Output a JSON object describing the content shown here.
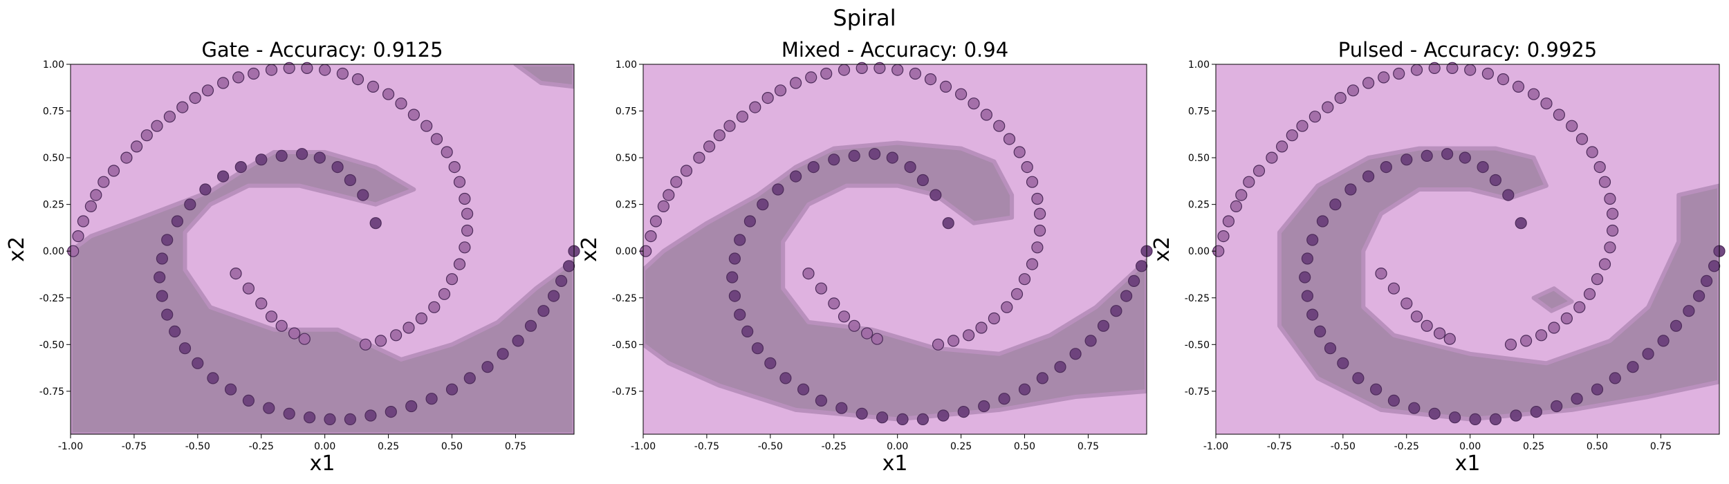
{
  "figure": {
    "title": "Spiral"
  },
  "chart_data": [
    {
      "type": "scatter",
      "title": "Gate - Accuracy: 0.9125",
      "xlabel": "x1",
      "ylabel": "x2",
      "xlim": [
        -1.0,
        0.98
      ],
      "ylim": [
        -0.98,
        1.0
      ],
      "xticks": [
        "-1.00",
        "-0.75",
        "-0.50",
        "-0.25",
        "0.00",
        "0.25",
        "0.50",
        "0.75"
      ],
      "yticks": [
        "1.00",
        "0.75",
        "0.50",
        "0.25",
        "0.00",
        "-0.25",
        "-0.50",
        "-0.75"
      ],
      "decision_region_class0": [
        [
          -1.0,
          0.0
        ],
        [
          -0.92,
          0.08
        ],
        [
          -0.72,
          0.18
        ],
        [
          -0.45,
          0.32
        ],
        [
          -0.3,
          0.45
        ],
        [
          -0.2,
          0.53
        ],
        [
          0.0,
          0.53
        ],
        [
          0.2,
          0.45
        ],
        [
          0.35,
          0.33
        ],
        [
          0.2,
          0.25
        ],
        [
          0.05,
          0.3
        ],
        [
          -0.1,
          0.35
        ],
        [
          -0.3,
          0.35
        ],
        [
          -0.45,
          0.25
        ],
        [
          -0.55,
          0.1
        ],
        [
          -0.55,
          -0.1
        ],
        [
          -0.45,
          -0.3
        ],
        [
          -0.2,
          -0.42
        ],
        [
          0.05,
          -0.42
        ],
        [
          0.3,
          -0.58
        ],
        [
          0.5,
          -0.5
        ],
        [
          0.68,
          -0.38
        ],
        [
          0.83,
          -0.2
        ],
        [
          0.98,
          -0.05
        ],
        [
          0.98,
          -0.98
        ],
        [
          -1.0,
          -0.98
        ]
      ],
      "decision_region_top_right": [
        [
          0.75,
          1.0
        ],
        [
          0.98,
          1.0
        ],
        [
          0.98,
          0.88
        ],
        [
          0.85,
          0.9
        ]
      ],
      "series": [
        {
          "name": "",
          "color": "#a06ca5",
          "x": [
            -0.99,
            -0.97,
            -0.95,
            -0.92,
            -0.9,
            -0.87,
            -0.83,
            -0.78,
            -0.74,
            -0.7,
            -0.66,
            -0.61,
            -0.56,
            -0.51,
            -0.46,
            -0.4,
            -0.34,
            -0.28,
            -0.21,
            -0.14,
            -0.07,
            0.0,
            0.07,
            0.13,
            0.19,
            0.25,
            0.3,
            0.35,
            0.4,
            0.44,
            0.48,
            0.51,
            0.53,
            0.55,
            0.56,
            0.56,
            0.55,
            0.53,
            0.5,
            0.47,
            0.43,
            0.38,
            0.33,
            0.28,
            0.22,
            0.16,
            -0.35,
            -0.3,
            -0.25,
            -0.21,
            -0.17,
            -0.12,
            -0.08
          ],
          "y": [
            0.0,
            0.08,
            0.16,
            0.24,
            0.3,
            0.37,
            0.43,
            0.5,
            0.56,
            0.62,
            0.67,
            0.72,
            0.77,
            0.82,
            0.86,
            0.9,
            0.93,
            0.95,
            0.97,
            0.98,
            0.98,
            0.97,
            0.95,
            0.92,
            0.88,
            0.84,
            0.79,
            0.73,
            0.67,
            0.6,
            0.53,
            0.45,
            0.37,
            0.28,
            0.2,
            0.11,
            0.02,
            -0.07,
            -0.15,
            -0.23,
            -0.3,
            -0.36,
            -0.41,
            -0.45,
            -0.48,
            -0.5,
            -0.12,
            -0.2,
            -0.28,
            -0.35,
            -0.4,
            -0.44,
            -0.47
          ]
        },
        {
          "name": "",
          "color": "#6a3f7a",
          "x": [
            0.98,
            0.96,
            0.93,
            0.9,
            0.86,
            0.81,
            0.76,
            0.7,
            0.64,
            0.57,
            0.5,
            0.42,
            0.34,
            0.26,
            0.18,
            0.1,
            0.02,
            -0.06,
            -0.14,
            -0.22,
            -0.3,
            -0.37,
            -0.44,
            -0.5,
            -0.55,
            -0.59,
            -0.62,
            -0.64,
            -0.65,
            -0.64,
            -0.62,
            -0.58,
            -0.53,
            -0.47,
            -0.4,
            -0.33,
            -0.25,
            -0.17,
            -0.09,
            -0.02,
            0.05,
            0.1,
            0.15,
            0.2
          ],
          "y": [
            0.0,
            -0.08,
            -0.16,
            -0.24,
            -0.32,
            -0.4,
            -0.48,
            -0.55,
            -0.62,
            -0.68,
            -0.74,
            -0.79,
            -0.83,
            -0.86,
            -0.88,
            -0.9,
            -0.9,
            -0.89,
            -0.87,
            -0.84,
            -0.8,
            -0.74,
            -0.68,
            -0.6,
            -0.52,
            -0.43,
            -0.34,
            -0.24,
            -0.14,
            -0.04,
            0.06,
            0.16,
            0.25,
            0.33,
            0.4,
            0.45,
            0.49,
            0.51,
            0.52,
            0.5,
            0.45,
            0.38,
            0.3,
            0.15
          ]
        }
      ]
    },
    {
      "type": "scatter",
      "title": "Mixed - Accuracy: 0.94",
      "xlabel": "x1",
      "ylabel": "x2",
      "xlim": [
        -1.0,
        0.98
      ],
      "ylim": [
        -0.98,
        1.0
      ],
      "xticks": [
        "-1.00",
        "-0.75",
        "-0.50",
        "-0.25",
        "0.00",
        "0.25",
        "0.50",
        "0.75"
      ],
      "yticks": [
        "1.00",
        "0.75",
        "0.50",
        "0.25",
        "0.00",
        "-0.25",
        "-0.50",
        "-0.75"
      ],
      "decision_region_class0": [
        [
          -1.0,
          -0.1
        ],
        [
          -0.92,
          0.0
        ],
        [
          -0.75,
          0.15
        ],
        [
          -0.55,
          0.3
        ],
        [
          -0.4,
          0.45
        ],
        [
          -0.25,
          0.55
        ],
        [
          0.0,
          0.58
        ],
        [
          0.25,
          0.55
        ],
        [
          0.38,
          0.48
        ],
        [
          0.45,
          0.3
        ],
        [
          0.45,
          0.18
        ],
        [
          0.3,
          0.15
        ],
        [
          0.15,
          0.3
        ],
        [
          0.0,
          0.35
        ],
        [
          -0.2,
          0.35
        ],
        [
          -0.35,
          0.25
        ],
        [
          -0.45,
          0.05
        ],
        [
          -0.45,
          -0.2
        ],
        [
          -0.35,
          -0.38
        ],
        [
          -0.1,
          -0.42
        ],
        [
          0.15,
          -0.52
        ],
        [
          0.4,
          -0.55
        ],
        [
          0.6,
          -0.45
        ],
        [
          0.78,
          -0.3
        ],
        [
          0.98,
          -0.05
        ],
        [
          0.98,
          -0.75
        ],
        [
          0.7,
          -0.78
        ],
        [
          0.4,
          -0.85
        ],
        [
          0.0,
          -0.9
        ],
        [
          -0.4,
          -0.85
        ],
        [
          -0.7,
          -0.72
        ],
        [
          -0.9,
          -0.6
        ],
        [
          -1.0,
          -0.5
        ]
      ],
      "series": [
        {
          "name": "",
          "color": "#a06ca5",
          "x": [
            -0.99,
            -0.97,
            -0.95,
            -0.92,
            -0.9,
            -0.87,
            -0.83,
            -0.78,
            -0.74,
            -0.7,
            -0.66,
            -0.61,
            -0.56,
            -0.51,
            -0.46,
            -0.4,
            -0.34,
            -0.28,
            -0.21,
            -0.14,
            -0.07,
            0.0,
            0.07,
            0.13,
            0.19,
            0.25,
            0.3,
            0.35,
            0.4,
            0.44,
            0.48,
            0.51,
            0.53,
            0.55,
            0.56,
            0.56,
            0.55,
            0.53,
            0.5,
            0.47,
            0.43,
            0.38,
            0.33,
            0.28,
            0.22,
            0.16,
            -0.35,
            -0.3,
            -0.25,
            -0.21,
            -0.17,
            -0.12,
            -0.08
          ],
          "y": [
            0.0,
            0.08,
            0.16,
            0.24,
            0.3,
            0.37,
            0.43,
            0.5,
            0.56,
            0.62,
            0.67,
            0.72,
            0.77,
            0.82,
            0.86,
            0.9,
            0.93,
            0.95,
            0.97,
            0.98,
            0.98,
            0.97,
            0.95,
            0.92,
            0.88,
            0.84,
            0.79,
            0.73,
            0.67,
            0.6,
            0.53,
            0.45,
            0.37,
            0.28,
            0.2,
            0.11,
            0.02,
            -0.07,
            -0.15,
            -0.23,
            -0.3,
            -0.36,
            -0.41,
            -0.45,
            -0.48,
            -0.5,
            -0.12,
            -0.2,
            -0.28,
            -0.35,
            -0.4,
            -0.44,
            -0.47
          ]
        },
        {
          "name": "",
          "color": "#6a3f7a",
          "x": [
            0.98,
            0.96,
            0.93,
            0.9,
            0.86,
            0.81,
            0.76,
            0.7,
            0.64,
            0.57,
            0.5,
            0.42,
            0.34,
            0.26,
            0.18,
            0.1,
            0.02,
            -0.06,
            -0.14,
            -0.22,
            -0.3,
            -0.37,
            -0.44,
            -0.5,
            -0.55,
            -0.59,
            -0.62,
            -0.64,
            -0.65,
            -0.64,
            -0.62,
            -0.58,
            -0.53,
            -0.47,
            -0.4,
            -0.33,
            -0.25,
            -0.17,
            -0.09,
            -0.02,
            0.05,
            0.1,
            0.15,
            0.2
          ],
          "y": [
            0.0,
            -0.08,
            -0.16,
            -0.24,
            -0.32,
            -0.4,
            -0.48,
            -0.55,
            -0.62,
            -0.68,
            -0.74,
            -0.79,
            -0.83,
            -0.86,
            -0.88,
            -0.9,
            -0.9,
            -0.89,
            -0.87,
            -0.84,
            -0.8,
            -0.74,
            -0.68,
            -0.6,
            -0.52,
            -0.43,
            -0.34,
            -0.24,
            -0.14,
            -0.04,
            0.06,
            0.16,
            0.25,
            0.33,
            0.4,
            0.45,
            0.49,
            0.51,
            0.52,
            0.5,
            0.45,
            0.38,
            0.3,
            0.15
          ]
        }
      ]
    },
    {
      "type": "scatter",
      "title": "Pulsed - Accuracy: 0.9925",
      "xlabel": "x1",
      "ylabel": "x2",
      "xlim": [
        -1.0,
        0.98
      ],
      "ylim": [
        -0.98,
        1.0
      ],
      "xticks": [
        "-1.00",
        "-0.75",
        "-0.50",
        "-0.25",
        "0.00",
        "0.25",
        "0.50",
        "0.75"
      ],
      "yticks": [
        "1.00",
        "0.75",
        "0.50",
        "0.25",
        "0.00",
        "-0.25",
        "-0.50",
        "-0.75"
      ],
      "decision_region_class0": [
        [
          -0.75,
          0.1
        ],
        [
          -0.6,
          0.35
        ],
        [
          -0.4,
          0.5
        ],
        [
          -0.2,
          0.55
        ],
        [
          0.1,
          0.55
        ],
        [
          0.25,
          0.5
        ],
        [
          0.3,
          0.35
        ],
        [
          0.15,
          0.28
        ],
        [
          0.0,
          0.33
        ],
        [
          -0.2,
          0.33
        ],
        [
          -0.35,
          0.2
        ],
        [
          -0.42,
          0.0
        ],
        [
          -0.42,
          -0.3
        ],
        [
          -0.3,
          -0.45
        ],
        [
          0.0,
          -0.55
        ],
        [
          0.3,
          -0.6
        ],
        [
          0.55,
          -0.48
        ],
        [
          0.7,
          -0.3
        ],
        [
          0.82,
          0.05
        ],
        [
          0.82,
          0.3
        ],
        [
          0.98,
          0.35
        ],
        [
          0.98,
          -0.7
        ],
        [
          0.7,
          -0.78
        ],
        [
          0.4,
          -0.85
        ],
        [
          0.0,
          -0.9
        ],
        [
          -0.35,
          -0.85
        ],
        [
          -0.6,
          -0.68
        ],
        [
          -0.75,
          -0.4
        ]
      ],
      "decision_region_small": [
        [
          0.25,
          -0.25
        ],
        [
          0.33,
          -0.2
        ],
        [
          0.4,
          -0.27
        ],
        [
          0.32,
          -0.32
        ]
      ],
      "series": [
        {
          "name": "",
          "color": "#a06ca5",
          "x": [
            -0.99,
            -0.97,
            -0.95,
            -0.92,
            -0.9,
            -0.87,
            -0.83,
            -0.78,
            -0.74,
            -0.7,
            -0.66,
            -0.61,
            -0.56,
            -0.51,
            -0.46,
            -0.4,
            -0.34,
            -0.28,
            -0.21,
            -0.14,
            -0.07,
            0.0,
            0.07,
            0.13,
            0.19,
            0.25,
            0.3,
            0.35,
            0.4,
            0.44,
            0.48,
            0.51,
            0.53,
            0.55,
            0.56,
            0.56,
            0.55,
            0.53,
            0.5,
            0.47,
            0.43,
            0.38,
            0.33,
            0.28,
            0.22,
            0.16,
            -0.35,
            -0.3,
            -0.25,
            -0.21,
            -0.17,
            -0.12,
            -0.08
          ],
          "y": [
            0.0,
            0.08,
            0.16,
            0.24,
            0.3,
            0.37,
            0.43,
            0.5,
            0.56,
            0.62,
            0.67,
            0.72,
            0.77,
            0.82,
            0.86,
            0.9,
            0.93,
            0.95,
            0.97,
            0.98,
            0.98,
            0.97,
            0.95,
            0.92,
            0.88,
            0.84,
            0.79,
            0.73,
            0.67,
            0.6,
            0.53,
            0.45,
            0.37,
            0.28,
            0.2,
            0.11,
            0.02,
            -0.07,
            -0.15,
            -0.23,
            -0.3,
            -0.36,
            -0.41,
            -0.45,
            -0.48,
            -0.5,
            -0.12,
            -0.2,
            -0.28,
            -0.35,
            -0.4,
            -0.44,
            -0.47
          ]
        },
        {
          "name": "",
          "color": "#6a3f7a",
          "x": [
            0.98,
            0.96,
            0.93,
            0.9,
            0.86,
            0.81,
            0.76,
            0.7,
            0.64,
            0.57,
            0.5,
            0.42,
            0.34,
            0.26,
            0.18,
            0.1,
            0.02,
            -0.06,
            -0.14,
            -0.22,
            -0.3,
            -0.37,
            -0.44,
            -0.5,
            -0.55,
            -0.59,
            -0.62,
            -0.64,
            -0.65,
            -0.64,
            -0.62,
            -0.58,
            -0.53,
            -0.47,
            -0.4,
            -0.33,
            -0.25,
            -0.17,
            -0.09,
            -0.02,
            0.05,
            0.1,
            0.15,
            0.2
          ],
          "y": [
            0.0,
            -0.08,
            -0.16,
            -0.24,
            -0.32,
            -0.4,
            -0.48,
            -0.55,
            -0.62,
            -0.68,
            -0.74,
            -0.79,
            -0.83,
            -0.86,
            -0.88,
            -0.9,
            -0.9,
            -0.89,
            -0.87,
            -0.84,
            -0.8,
            -0.74,
            -0.68,
            -0.6,
            -0.52,
            -0.43,
            -0.34,
            -0.24,
            -0.14,
            -0.04,
            0.06,
            0.16,
            0.25,
            0.33,
            0.4,
            0.45,
            0.49,
            0.51,
            0.52,
            0.5,
            0.45,
            0.38,
            0.3,
            0.15
          ]
        }
      ]
    }
  ],
  "colors": {
    "region_class1": "#dfb2e0",
    "region_class0": "#a889ab",
    "point_class1": "#a06ca5",
    "point_class0": "#6a3f7a",
    "point_edge": "#4d2c5a"
  }
}
